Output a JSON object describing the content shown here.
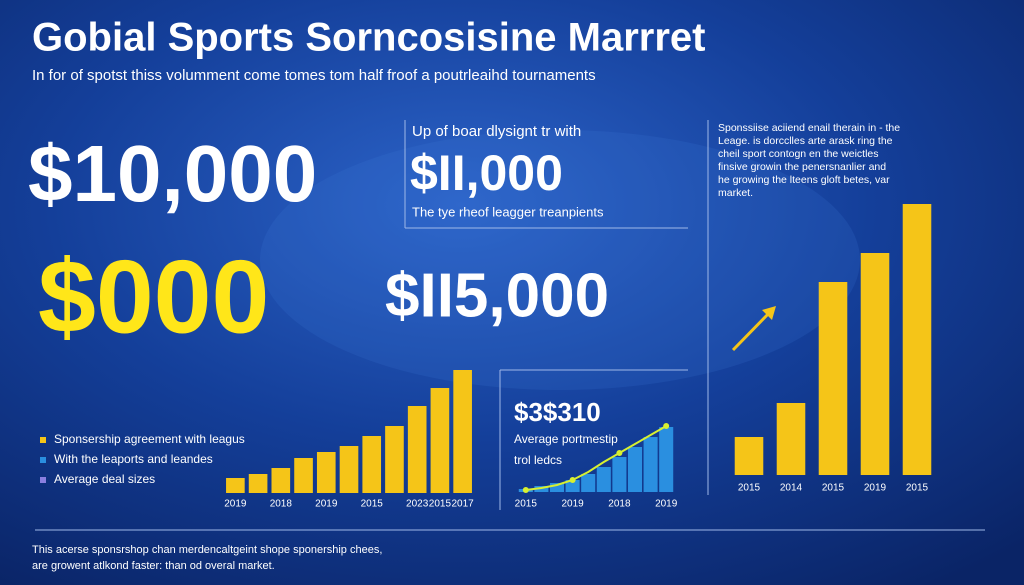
{
  "header": {
    "title": "Gobial Sports Sorncosisine Marrret",
    "subtitle": "In for of spotst thiss volumment come tomes tom half froof a poutrleaihd tournaments"
  },
  "stats": {
    "big_white": "$10,000",
    "big_yellow": "$000",
    "box_caption": "Up of boar dlysignt tr with",
    "box_value": "$II,000",
    "box_note": "The tye rheof leagger treanpients",
    "mid_value": "$II5,000",
    "small_value": "$3$310",
    "small_note_1": "Average portmestip",
    "small_note_2": "trol ledcs"
  },
  "legend": [
    {
      "label": "Sponsership agreement with leagus",
      "color": "#f5c518"
    },
    {
      "label": "With the leaports and leandes",
      "color": "#2a8fe0"
    },
    {
      "label": "Average deal sizes",
      "color": "#8a7fe0"
    }
  ],
  "note_lines": [
    "Sponssiise aciiend enail therain in - the",
    "Leage. is dorcclles arte arask ring the",
    "cheil sport contogn en the weictles",
    "finsive growin the penersnanlier and",
    "he growing the lteens gloft betes, var",
    "market."
  ],
  "footer": [
    "This acerse sponsrshop chan merdencaltgeint shope sponership chees,",
    "are growent atlkond faster: than od overal market."
  ],
  "chart_data": [
    {
      "type": "bar",
      "categories": [
        "2019",
        null,
        "2018",
        null,
        "2019",
        null,
        "2015",
        null,
        "2023",
        "2015",
        "2017"
      ],
      "series": [
        {
          "color": "#f5c518",
          "values": [
            15,
            19,
            25,
            35,
            41,
            47,
            57,
            67,
            87,
            105,
            123
          ]
        }
      ],
      "ylim": [
        0,
        130
      ]
    },
    {
      "type": "bar",
      "categories": [
        "2015",
        null,
        null,
        "2019",
        null,
        null,
        "2018",
        null,
        null,
        "2019"
      ],
      "series": [
        {
          "color": "#2a8fe0",
          "values": [
            3,
            6,
            9,
            12,
            18,
            25,
            35,
            45,
            55,
            65
          ]
        },
        {
          "type": "line",
          "color": "#d8f030",
          "values": [
            2,
            4,
            7,
            12,
            20,
            30,
            39,
            48,
            57,
            66
          ]
        }
      ],
      "ylim": [
        0,
        70
      ]
    },
    {
      "type": "bar",
      "categories": [
        "2015",
        "2014",
        "2015",
        "2019",
        "2015"
      ],
      "series": [
        {
          "color": "#f5c518",
          "values": [
            38,
            72,
            193,
            222,
            271
          ]
        }
      ],
      "ylim": [
        0,
        280
      ]
    }
  ]
}
